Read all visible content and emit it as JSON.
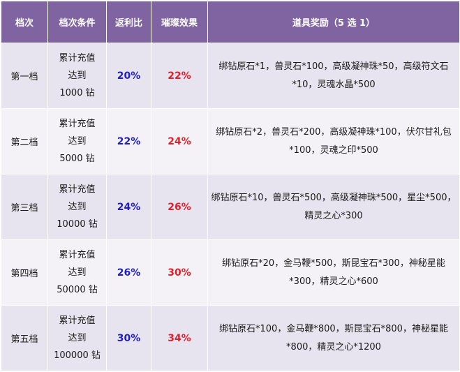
{
  "headers": [
    "档次",
    "档次条件",
    "返利比",
    "璀璨效果",
    "道具奖励（5 选 1）"
  ],
  "rows": [
    {
      "tier": "第一档",
      "condition": [
        "累计充值",
        "达到",
        "1000 钻"
      ],
      "rebate": "20%",
      "effect": "22%",
      "items": "绑钻原石*1，兽灵石*100，高级凝神珠*50，高级符文石*10，灵魂水晶*500"
    },
    {
      "tier": "第二档",
      "condition": [
        "累计充值",
        "达到",
        "5000 钻"
      ],
      "rebate": "22%",
      "effect": "24%",
      "items": "绑钻原石*2，兽灵石*200，高级凝神珠*100，伏尔甘礼包*100，灵魂之印*500"
    },
    {
      "tier": "第三档",
      "condition": [
        "累计充值",
        "达到",
        "10000 钻"
      ],
      "rebate": "24%",
      "effect": "26%",
      "items": "绑钻原石*10，兽灵石*500，高级凝神珠*500，星尘*500，精灵之心*300"
    },
    {
      "tier": "第四档",
      "condition": [
        "累计充值",
        "达到",
        "50000 钻"
      ],
      "rebate": "26%",
      "effect": "30%",
      "items": "绑钻原石*20，金马鞭*500，斯昆宝石*300，神秘星能*300，精灵之心*600"
    },
    {
      "tier": "第五档",
      "condition": [
        "累计充值",
        "达到",
        "100000 钻"
      ],
      "rebate": "30%",
      "effect": "34%",
      "items": "绑钻原石*100，金马鞭*800，斯昆宝石*800，神秘星能*800，精灵之心*1200"
    }
  ],
  "colors": {
    "header_bg": "#8064a2",
    "rebate_text": "#1f1fc8",
    "effect_text": "#e0202a"
  }
}
